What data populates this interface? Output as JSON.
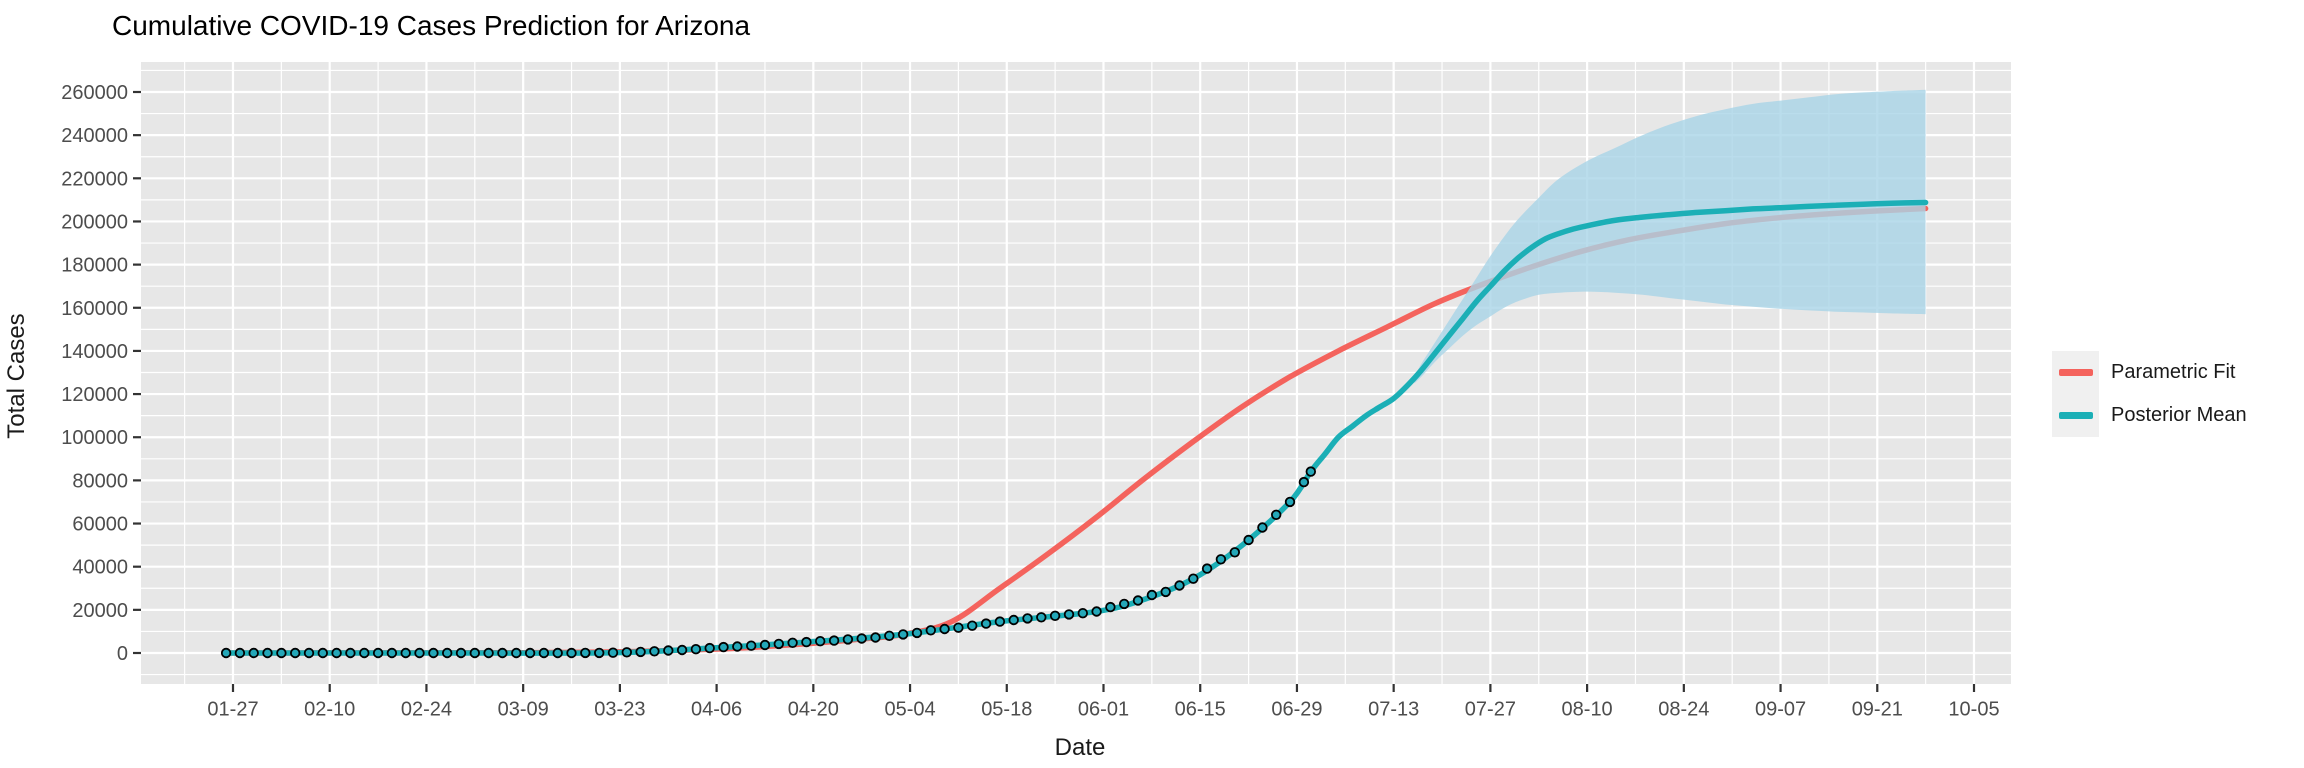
{
  "chart_data": {
    "type": "line",
    "title": "Cumulative COVID-19 Cases Prediction for Arizona",
    "xlabel": "Date",
    "ylabel": "Total Cases",
    "x_ticks": [
      "01-27",
      "02-10",
      "02-24",
      "03-09",
      "03-23",
      "04-06",
      "04-20",
      "05-04",
      "05-18",
      "06-01",
      "06-15",
      "06-29",
      "07-13",
      "07-27",
      "08-10",
      "08-24",
      "09-07",
      "09-21",
      "10-05"
    ],
    "y_ticks": [
      0,
      20000,
      40000,
      60000,
      80000,
      100000,
      120000,
      140000,
      160000,
      180000,
      200000,
      220000,
      240000,
      260000
    ],
    "ylim": [
      -14000,
      274000
    ],
    "grid": true,
    "panel_bg": "#E7E7E7",
    "grid_color": "#FFFFFF",
    "tick_color": "#333333",
    "tick_label_color": "#4D4D4D",
    "legend_position": "right",
    "legend": [
      {
        "label": "Parametric Fit",
        "color": "#F4635D"
      },
      {
        "label": "Posterior Mean",
        "color": "#1BAFB6"
      }
    ],
    "series": [
      {
        "name": "Observed cumulative cases",
        "kind": "points",
        "point_fill": "#24A7B8",
        "point_stroke": "#000000",
        "data": [
          [
            "01-26",
            1
          ],
          [
            "01-28",
            1
          ],
          [
            "01-30",
            1
          ],
          [
            "02-01",
            1
          ],
          [
            "02-03",
            1
          ],
          [
            "02-05",
            1
          ],
          [
            "02-07",
            1
          ],
          [
            "02-09",
            1
          ],
          [
            "02-11",
            1
          ],
          [
            "02-13",
            1
          ],
          [
            "02-15",
            1
          ],
          [
            "02-17",
            1
          ],
          [
            "02-19",
            1
          ],
          [
            "02-21",
            1
          ],
          [
            "02-23",
            1
          ],
          [
            "02-25",
            1
          ],
          [
            "02-27",
            1
          ],
          [
            "02-29",
            1
          ],
          [
            "03-02",
            2
          ],
          [
            "03-04",
            2
          ],
          [
            "03-06",
            3
          ],
          [
            "03-08",
            6
          ],
          [
            "03-10",
            9
          ],
          [
            "03-12",
            9
          ],
          [
            "03-14",
            12
          ],
          [
            "03-16",
            20
          ],
          [
            "03-18",
            28
          ],
          [
            "03-20",
            65
          ],
          [
            "03-22",
            152
          ],
          [
            "03-24",
            326
          ],
          [
            "03-26",
            508
          ],
          [
            "03-28",
            773
          ],
          [
            "03-30",
            1169
          ],
          [
            "04-01",
            1413
          ],
          [
            "04-03",
            1769
          ],
          [
            "04-05",
            2269
          ],
          [
            "04-07",
            2726
          ],
          [
            "04-09",
            3018
          ],
          [
            "04-11",
            3393
          ],
          [
            "04-13",
            3702
          ],
          [
            "04-15",
            4237
          ],
          [
            "04-17",
            4719
          ],
          [
            "04-19",
            5064
          ],
          [
            "04-21",
            5472
          ],
          [
            "04-23",
            5769
          ],
          [
            "04-25",
            6280
          ],
          [
            "04-27",
            6716
          ],
          [
            "04-29",
            7202
          ],
          [
            "05-01",
            7962
          ],
          [
            "05-03",
            8640
          ],
          [
            "05-05",
            9305
          ],
          [
            "05-07",
            10526
          ],
          [
            "05-09",
            11119
          ],
          [
            "05-11",
            11736
          ],
          [
            "05-13",
            12674
          ],
          [
            "05-15",
            13631
          ],
          [
            "05-17",
            14566
          ],
          [
            "05-19",
            15315
          ],
          [
            "05-21",
            16039
          ],
          [
            "05-23",
            16561
          ],
          [
            "05-25",
            17262
          ],
          [
            "05-27",
            17877
          ],
          [
            "05-29",
            18465
          ],
          [
            "05-31",
            19255
          ],
          [
            "06-02",
            21250
          ],
          [
            "06-04",
            22753
          ],
          [
            "06-06",
            24332
          ],
          [
            "06-08",
            26889
          ],
          [
            "06-10",
            28296
          ],
          [
            "06-12",
            31264
          ],
          [
            "06-14",
            34458
          ],
          [
            "06-16",
            39097
          ],
          [
            "06-18",
            43443
          ],
          [
            "06-20",
            46689
          ],
          [
            "06-22",
            52390
          ],
          [
            "06-24",
            58179
          ],
          [
            "06-26",
            64055
          ],
          [
            "06-28",
            70051
          ],
          [
            "06-30",
            79215
          ],
          [
            "07-01",
            84092
          ]
        ]
      },
      {
        "name": "Parametric Fit",
        "kind": "line",
        "color": "#F4635D",
        "data": [
          [
            "01-26",
            10
          ],
          [
            "02-09",
            25
          ],
          [
            "02-23",
            60
          ],
          [
            "03-08",
            150
          ],
          [
            "03-22",
            500
          ],
          [
            "04-05",
            1700
          ],
          [
            "04-12",
            2800
          ],
          [
            "04-19",
            4300
          ],
          [
            "04-26",
            6200
          ],
          [
            "05-03",
            8600
          ],
          [
            "05-10",
            14500
          ],
          [
            "05-17",
            30000
          ],
          [
            "05-24",
            46000
          ],
          [
            "05-31",
            63000
          ],
          [
            "06-07",
            81000
          ],
          [
            "06-14",
            98000
          ],
          [
            "06-21",
            114000
          ],
          [
            "06-28",
            128000
          ],
          [
            "07-05",
            140000
          ],
          [
            "07-12",
            151000
          ],
          [
            "07-19",
            162000
          ],
          [
            "07-26",
            171000
          ],
          [
            "08-02",
            179000
          ],
          [
            "08-09",
            186000
          ],
          [
            "08-16",
            191500
          ],
          [
            "08-23",
            195500
          ],
          [
            "08-30",
            199000
          ],
          [
            "09-06",
            201500
          ],
          [
            "09-13",
            203300
          ],
          [
            "09-20",
            204700
          ],
          [
            "09-28",
            206000
          ]
        ]
      },
      {
        "name": "Posterior Mean",
        "kind": "line",
        "color": "#1BAFB6",
        "data": [
          [
            "01-26",
            1
          ],
          [
            "02-23",
            1
          ],
          [
            "03-22",
            152
          ],
          [
            "04-05",
            2269
          ],
          [
            "04-19",
            5064
          ],
          [
            "05-03",
            8640
          ],
          [
            "05-17",
            14566
          ],
          [
            "05-31",
            19255
          ],
          [
            "06-07",
            25000
          ],
          [
            "06-14",
            34458
          ],
          [
            "06-21",
            49798
          ],
          [
            "06-28",
            70051
          ],
          [
            "07-01",
            84092
          ],
          [
            "07-03",
            92000
          ],
          [
            "07-05",
            100000
          ],
          [
            "07-07",
            105000
          ],
          [
            "07-09",
            110000
          ],
          [
            "07-11",
            114000
          ],
          [
            "07-13",
            118000
          ],
          [
            "07-15",
            124000
          ],
          [
            "07-17",
            131000
          ],
          [
            "07-19",
            139000
          ],
          [
            "07-21",
            147000
          ],
          [
            "07-23",
            155000
          ],
          [
            "07-25",
            163000
          ],
          [
            "07-27",
            170000
          ],
          [
            "07-29",
            177000
          ],
          [
            "07-31",
            183000
          ],
          [
            "08-02",
            188000
          ],
          [
            "08-04",
            192000
          ],
          [
            "08-06",
            194500
          ],
          [
            "08-08",
            196500
          ],
          [
            "08-10",
            198000
          ],
          [
            "08-14",
            200500
          ],
          [
            "08-18",
            202000
          ],
          [
            "08-22",
            203200
          ],
          [
            "08-26",
            204200
          ],
          [
            "08-30",
            205000
          ],
          [
            "09-03",
            205800
          ],
          [
            "09-07",
            206400
          ],
          [
            "09-11",
            207000
          ],
          [
            "09-15",
            207500
          ],
          [
            "09-19",
            208000
          ],
          [
            "09-23",
            208400
          ],
          [
            "09-28",
            208800
          ]
        ]
      },
      {
        "name": "Credible interval",
        "kind": "ribbon",
        "color": "rgba(169,212,231,0.80)",
        "data": [
          [
            "07-16",
            125000,
            128000
          ],
          [
            "07-17",
            128000,
            134000
          ],
          [
            "07-19",
            135000,
            144000
          ],
          [
            "07-21",
            141000,
            154000
          ],
          [
            "07-23",
            147000,
            164000
          ],
          [
            "07-25",
            152000,
            174000
          ],
          [
            "07-27",
            156000,
            184000
          ],
          [
            "07-29",
            160000,
            193000
          ],
          [
            "07-31",
            163000,
            201000
          ],
          [
            "08-03",
            166000,
            211000
          ],
          [
            "08-06",
            167000,
            220000
          ],
          [
            "08-10",
            167500,
            228000
          ],
          [
            "08-14",
            167000,
            234000
          ],
          [
            "08-18",
            166000,
            240000
          ],
          [
            "08-22",
            164500,
            245000
          ],
          [
            "08-26",
            163000,
            249000
          ],
          [
            "08-30",
            161500,
            252000
          ],
          [
            "09-03",
            160500,
            254500
          ],
          [
            "09-07",
            159500,
            256000
          ],
          [
            "09-11",
            158800,
            257500
          ],
          [
            "09-15",
            158200,
            259000
          ],
          [
            "09-19",
            157800,
            259800
          ],
          [
            "09-23",
            157400,
            260400
          ],
          [
            "09-28",
            157000,
            261000
          ]
        ]
      }
    ]
  }
}
